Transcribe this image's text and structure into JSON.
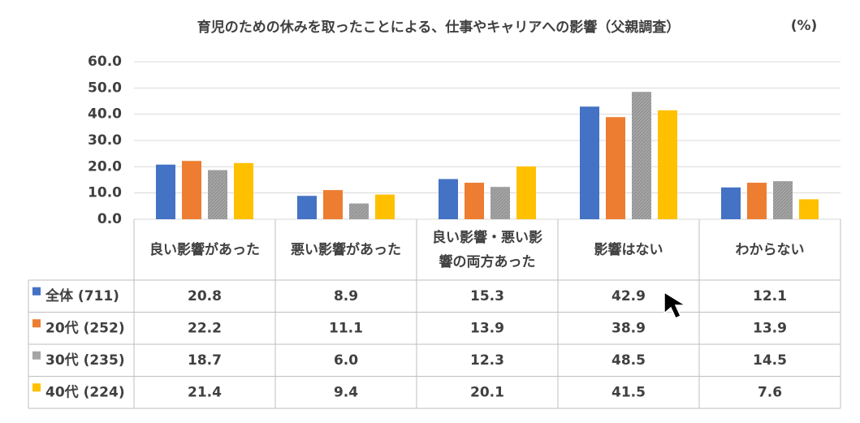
{
  "chart_data": {
    "type": "bar",
    "title": "育児のための休みを取ったことによる、仕事やキャリアへの影響（父親調査）",
    "unit_label": "(%)",
    "categories": [
      "良い影響があった",
      "悪い影響があった",
      "良い影響・悪い影響の両方あった",
      "影響はない",
      "わからない"
    ],
    "series": [
      {
        "name": "全体 (711)",
        "color": "#4472c4",
        "values": [
          20.8,
          8.9,
          15.3,
          42.9,
          12.1
        ],
        "value_labels": [
          "20.8",
          "8.9",
          "15.3",
          "42.9",
          "12.1"
        ]
      },
      {
        "name": "20代 (252)",
        "color": "#ed7d31",
        "values": [
          22.2,
          11.1,
          13.9,
          38.9,
          13.9
        ],
        "value_labels": [
          "22.2",
          "11.1",
          "13.9",
          "38.9",
          "13.9"
        ]
      },
      {
        "name": "30代 (235)",
        "color": "#a5a5a5",
        "values": [
          18.7,
          6.0,
          12.3,
          48.5,
          14.5
        ],
        "value_labels": [
          "18.7",
          "6.0",
          "12.3",
          "48.5",
          "14.5"
        ]
      },
      {
        "name": "40代 (224)",
        "color": "#ffc000",
        "values": [
          21.4,
          9.4,
          20.1,
          41.5,
          7.6
        ],
        "value_labels": [
          "21.4",
          "9.4",
          "20.1",
          "41.5",
          "7.6"
        ]
      }
    ],
    "ylim": [
      0,
      60
    ],
    "yticks": [
      {
        "value": 0,
        "label": "0.0"
      },
      {
        "value": 10,
        "label": "10.0"
      },
      {
        "value": 20,
        "label": "20.0"
      },
      {
        "value": 30,
        "label": "30.0"
      },
      {
        "value": 40,
        "label": "40.0"
      },
      {
        "value": 50,
        "label": "50.0"
      },
      {
        "value": 60,
        "label": "60.0"
      }
    ],
    "grid": true
  }
}
